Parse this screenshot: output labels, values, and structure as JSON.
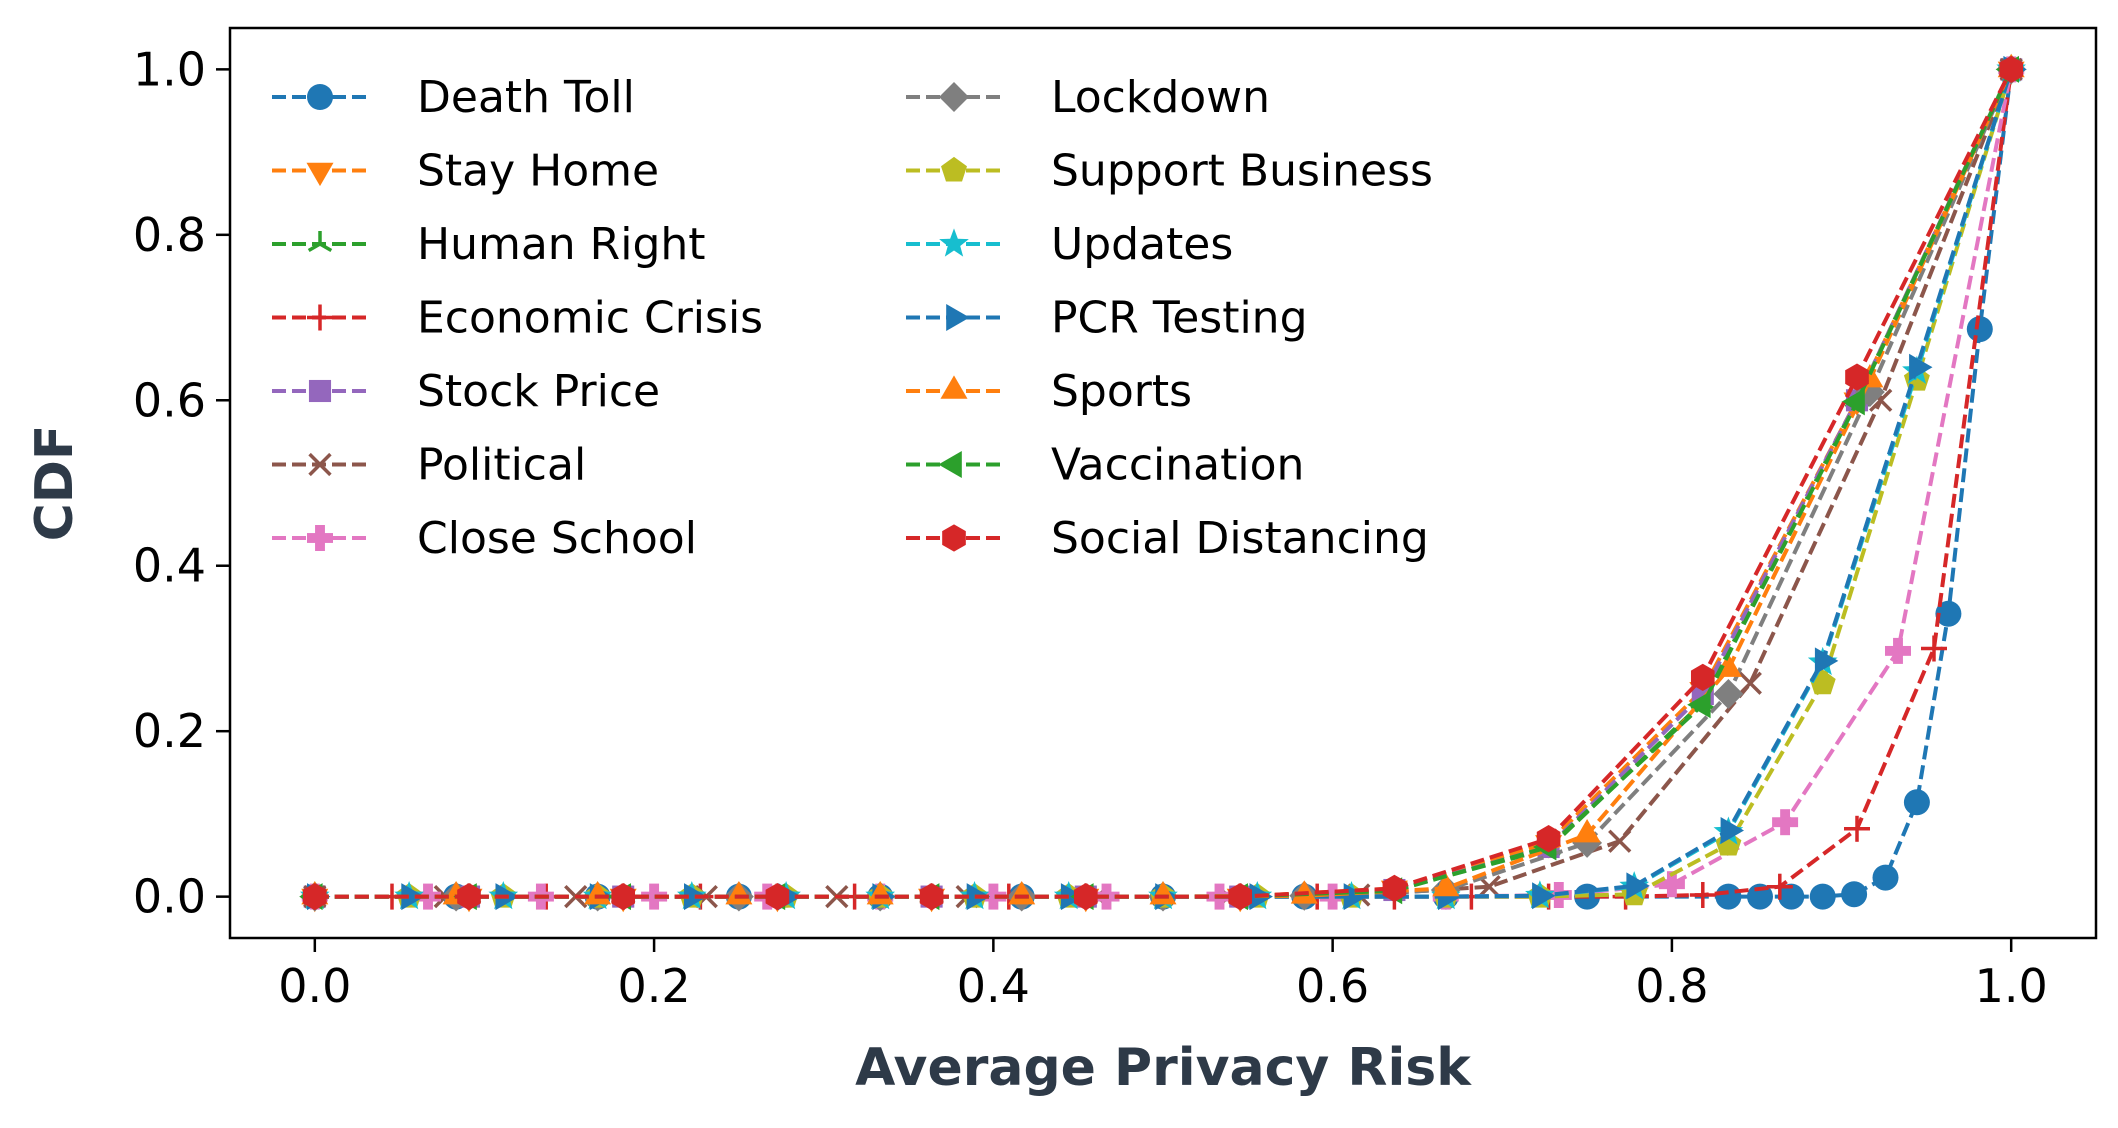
{
  "chart_data": {
    "type": "line",
    "xlabel": "Average Privacy Risk",
    "ylabel": "CDF",
    "xlim": [
      -0.05,
      1.05
    ],
    "ylim": [
      -0.05,
      1.05
    ],
    "xticks": [
      "0.0",
      "0.2",
      "0.4",
      "0.6",
      "0.8",
      "1.0"
    ],
    "yticks": [
      "0.0",
      "0.2",
      "0.4",
      "0.6",
      "0.8",
      "1.0"
    ],
    "grid": false,
    "legend_position": "top-left",
    "legend_columns": 2,
    "series": [
      {
        "name": "Death Toll",
        "color": "#1f77b4",
        "marker": "circle",
        "x": [
          0.0,
          0.0833,
          0.1667,
          0.25,
          0.3333,
          0.4167,
          0.5,
          0.5833,
          0.6667,
          0.75,
          0.8333,
          0.8519,
          0.8704,
          0.8889,
          0.9074,
          0.9259,
          0.9444,
          0.963,
          0.9815,
          1.0
        ],
        "y": [
          0,
          0,
          0,
          0,
          0,
          0,
          0,
          0,
          0,
          0,
          0,
          0,
          0,
          0,
          0.003,
          0.023,
          0.114,
          0.342,
          0.686,
          1.0
        ]
      },
      {
        "name": "Stay Home",
        "color": "#ff7f0e",
        "marker": "triangle-down",
        "x": [
          0.0,
          0.0909,
          0.1818,
          0.2727,
          0.3636,
          0.4545,
          0.5455,
          0.6364,
          0.7273,
          0.8182,
          0.9091,
          1.0
        ],
        "y": [
          0,
          0,
          0,
          0,
          0,
          0,
          0,
          0.01,
          0.065,
          0.25,
          0.6,
          1.0
        ]
      },
      {
        "name": "Human Right",
        "color": "#2ca02c",
        "marker": "tri",
        "x": [
          0.0,
          0.0909,
          0.1818,
          0.2727,
          0.3636,
          0.4545,
          0.5455,
          0.6364,
          0.7273,
          0.8182,
          0.9091,
          1.0
        ],
        "y": [
          0,
          0,
          0,
          0,
          0,
          0,
          0,
          0.008,
          0.058,
          0.235,
          0.6,
          1.0
        ]
      },
      {
        "name": "Economic Crisis",
        "color": "#d62728",
        "marker": "plus",
        "x": [
          0.0,
          0.0455,
          0.0909,
          0.1364,
          0.1818,
          0.2273,
          0.2727,
          0.3182,
          0.3636,
          0.4091,
          0.4545,
          0.5,
          0.5455,
          0.5909,
          0.6364,
          0.6818,
          0.7273,
          0.7727,
          0.8182,
          0.8636,
          0.9091,
          0.9545,
          1.0
        ],
        "y": [
          0,
          0,
          0,
          0,
          0,
          0,
          0,
          0,
          0,
          0,
          0,
          0,
          0,
          0,
          0,
          0,
          0,
          0,
          0.002,
          0.012,
          0.082,
          0.3,
          1.0
        ]
      },
      {
        "name": "Stock Price",
        "color": "#9467bd",
        "marker": "square",
        "x": [
          0.0,
          0.0909,
          0.1818,
          0.2727,
          0.3636,
          0.4545,
          0.5455,
          0.6364,
          0.7273,
          0.8182,
          0.9091,
          1.0
        ],
        "y": [
          0,
          0,
          0,
          0,
          0,
          0,
          0,
          0.008,
          0.06,
          0.245,
          0.6,
          1.0
        ]
      },
      {
        "name": "Political",
        "color": "#8c564b",
        "marker": "x",
        "x": [
          0.0,
          0.0769,
          0.1538,
          0.2308,
          0.3077,
          0.3846,
          0.4615,
          0.5385,
          0.6154,
          0.6923,
          0.7692,
          0.8462,
          0.9231,
          1.0
        ],
        "y": [
          0,
          0,
          0,
          0,
          0,
          0,
          0,
          0,
          0.002,
          0.012,
          0.067,
          0.258,
          0.6,
          1.0
        ]
      },
      {
        "name": "Close School",
        "color": "#e377c2",
        "marker": "plus-filled",
        "x": [
          0.0,
          0.0667,
          0.1333,
          0.2,
          0.2667,
          0.3333,
          0.4,
          0.4667,
          0.5333,
          0.6,
          0.6667,
          0.7333,
          0.8,
          0.8667,
          0.9333,
          1.0
        ],
        "y": [
          0,
          0,
          0,
          0,
          0,
          0,
          0,
          0,
          0,
          0,
          0,
          0.002,
          0.015,
          0.09,
          0.297,
          1.0
        ]
      },
      {
        "name": "Lockdown",
        "color": "#7f7f7f",
        "marker": "diamond",
        "x": [
          0.0,
          0.0833,
          0.1667,
          0.25,
          0.3333,
          0.4167,
          0.5,
          0.5833,
          0.6667,
          0.75,
          0.8333,
          0.9167,
          1.0
        ],
        "y": [
          0,
          0,
          0,
          0,
          0,
          0,
          0,
          0.001,
          0.008,
          0.065,
          0.245,
          0.61,
          1.0
        ]
      },
      {
        "name": "Support Business",
        "color": "#bcbd22",
        "marker": "pentagon",
        "x": [
          0.0,
          0.0556,
          0.1111,
          0.1667,
          0.2222,
          0.2778,
          0.3333,
          0.3889,
          0.4444,
          0.5,
          0.5556,
          0.6111,
          0.6667,
          0.7222,
          0.7778,
          0.8333,
          0.8889,
          0.9444,
          1.0
        ],
        "y": [
          0,
          0,
          0,
          0,
          0,
          0,
          0,
          0,
          0,
          0,
          0,
          0,
          0,
          0,
          0.003,
          0.063,
          0.258,
          0.625,
          1.0
        ]
      },
      {
        "name": "Updates",
        "color": "#17becf",
        "marker": "star",
        "x": [
          0.0,
          0.0556,
          0.1111,
          0.1667,
          0.2222,
          0.2778,
          0.3333,
          0.3889,
          0.4444,
          0.5,
          0.5556,
          0.6111,
          0.6667,
          0.7222,
          0.7778,
          0.8333,
          0.8889,
          0.9444,
          1.0
        ],
        "y": [
          0,
          0,
          0,
          0,
          0,
          0,
          0,
          0,
          0,
          0,
          0,
          0,
          0,
          0.001,
          0.012,
          0.078,
          0.283,
          0.635,
          1.0
        ]
      },
      {
        "name": "PCR Testing",
        "color": "#1f77b4",
        "marker": "triangle-right",
        "x": [
          0.0,
          0.0556,
          0.1111,
          0.1667,
          0.2222,
          0.2778,
          0.3333,
          0.3889,
          0.4444,
          0.5,
          0.5556,
          0.6111,
          0.6667,
          0.7222,
          0.7778,
          0.8333,
          0.8889,
          0.9444,
          1.0
        ],
        "y": [
          0,
          0,
          0,
          0,
          0,
          0,
          0,
          0,
          0,
          0,
          0,
          0,
          0,
          0.001,
          0.013,
          0.08,
          0.285,
          0.64,
          1.0
        ]
      },
      {
        "name": "Sports",
        "color": "#ff7f0e",
        "marker": "triangle-up",
        "x": [
          0.0,
          0.0833,
          0.1667,
          0.25,
          0.3333,
          0.4167,
          0.5,
          0.5833,
          0.6667,
          0.75,
          0.8333,
          0.9167,
          1.0
        ],
        "y": [
          0,
          0,
          0,
          0,
          0,
          0,
          0,
          0.001,
          0.01,
          0.075,
          0.275,
          0.625,
          1.0
        ]
      },
      {
        "name": "Vaccination",
        "color": "#2ca02c",
        "marker": "triangle-left",
        "x": [
          0.0,
          0.0909,
          0.1818,
          0.2727,
          0.3636,
          0.4545,
          0.5455,
          0.6364,
          0.7273,
          0.8182,
          0.9091,
          1.0
        ],
        "y": [
          0,
          0,
          0,
          0,
          0,
          0,
          0,
          0.007,
          0.06,
          0.232,
          0.598,
          1.0
        ]
      },
      {
        "name": "Social Distancing",
        "color": "#d62728",
        "marker": "hexagon",
        "x": [
          0.0,
          0.0909,
          0.1818,
          0.2727,
          0.3636,
          0.4545,
          0.5455,
          0.6364,
          0.7273,
          0.8182,
          0.9091,
          1.0
        ],
        "y": [
          0,
          0,
          0,
          0,
          0,
          0,
          0,
          0.01,
          0.07,
          0.265,
          0.628,
          1.0
        ]
      }
    ]
  }
}
